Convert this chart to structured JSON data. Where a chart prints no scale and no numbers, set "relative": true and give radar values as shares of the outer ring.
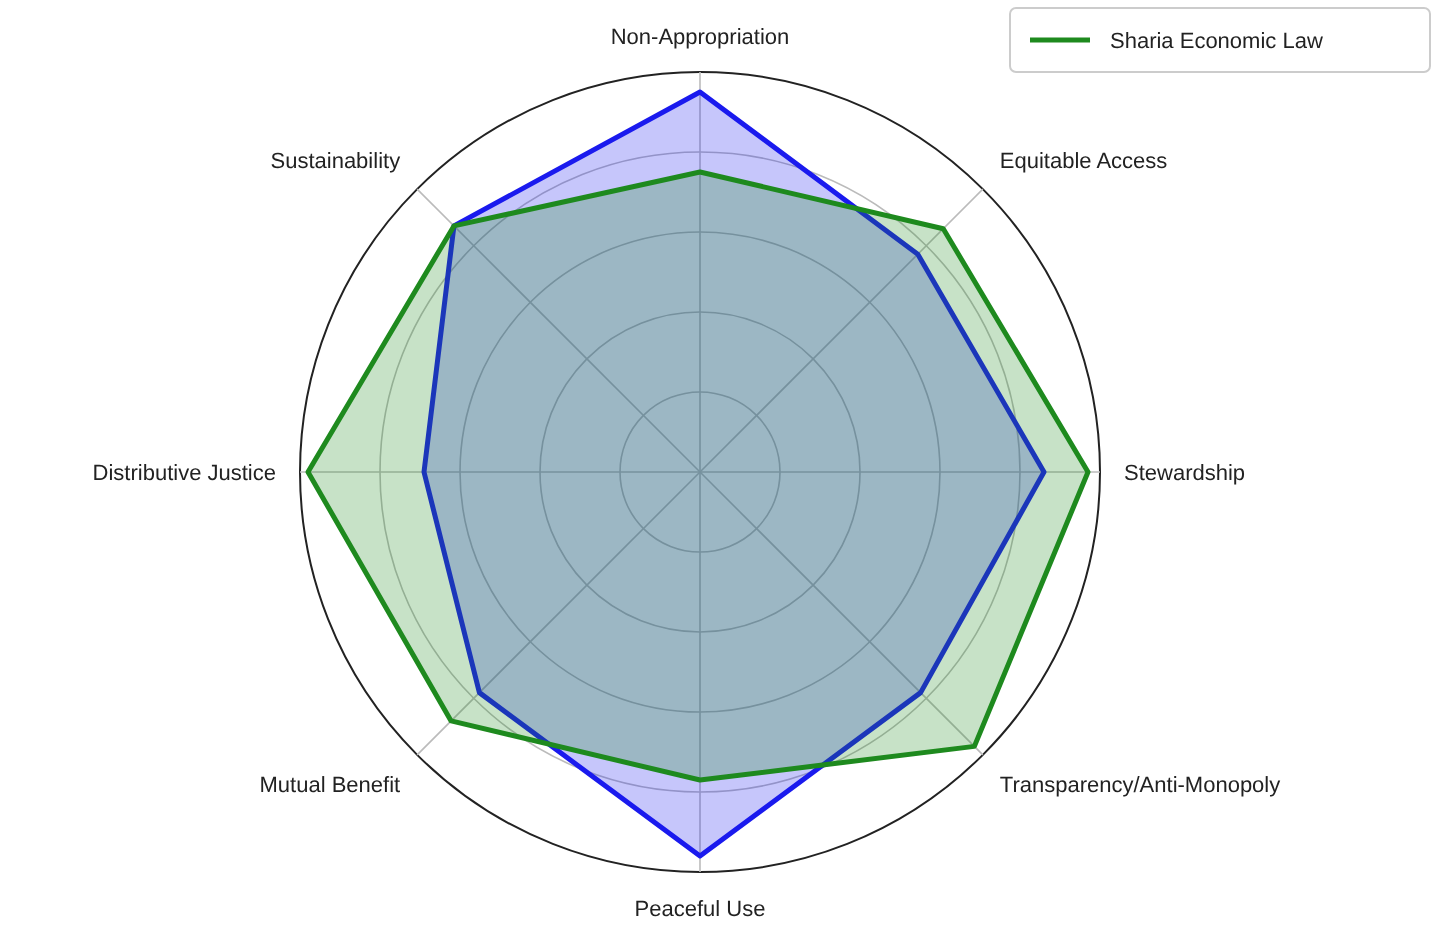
{
  "chart_data": {
    "type": "radar",
    "relative": true,
    "categories": [
      "Non-Appropriation",
      "Equitable Access",
      "Stewardship",
      "Transparency/Anti-Monopoly",
      "Peaceful Use",
      "Mutual Benefit",
      "Distributive Justice",
      "Sustainability"
    ],
    "series": [
      {
        "color": "#1a1aee",
        "values": [
          0.95,
          0.77,
          0.86,
          0.78,
          0.96,
          0.78,
          0.69,
          0.87
        ]
      },
      {
        "name": "Sharia Economic Law",
        "color": "#1e8a1e",
        "values": [
          0.75,
          0.86,
          0.97,
          0.97,
          0.77,
          0.88,
          0.98,
          0.87
        ]
      }
    ],
    "grid": true,
    "legend": "top right"
  }
}
